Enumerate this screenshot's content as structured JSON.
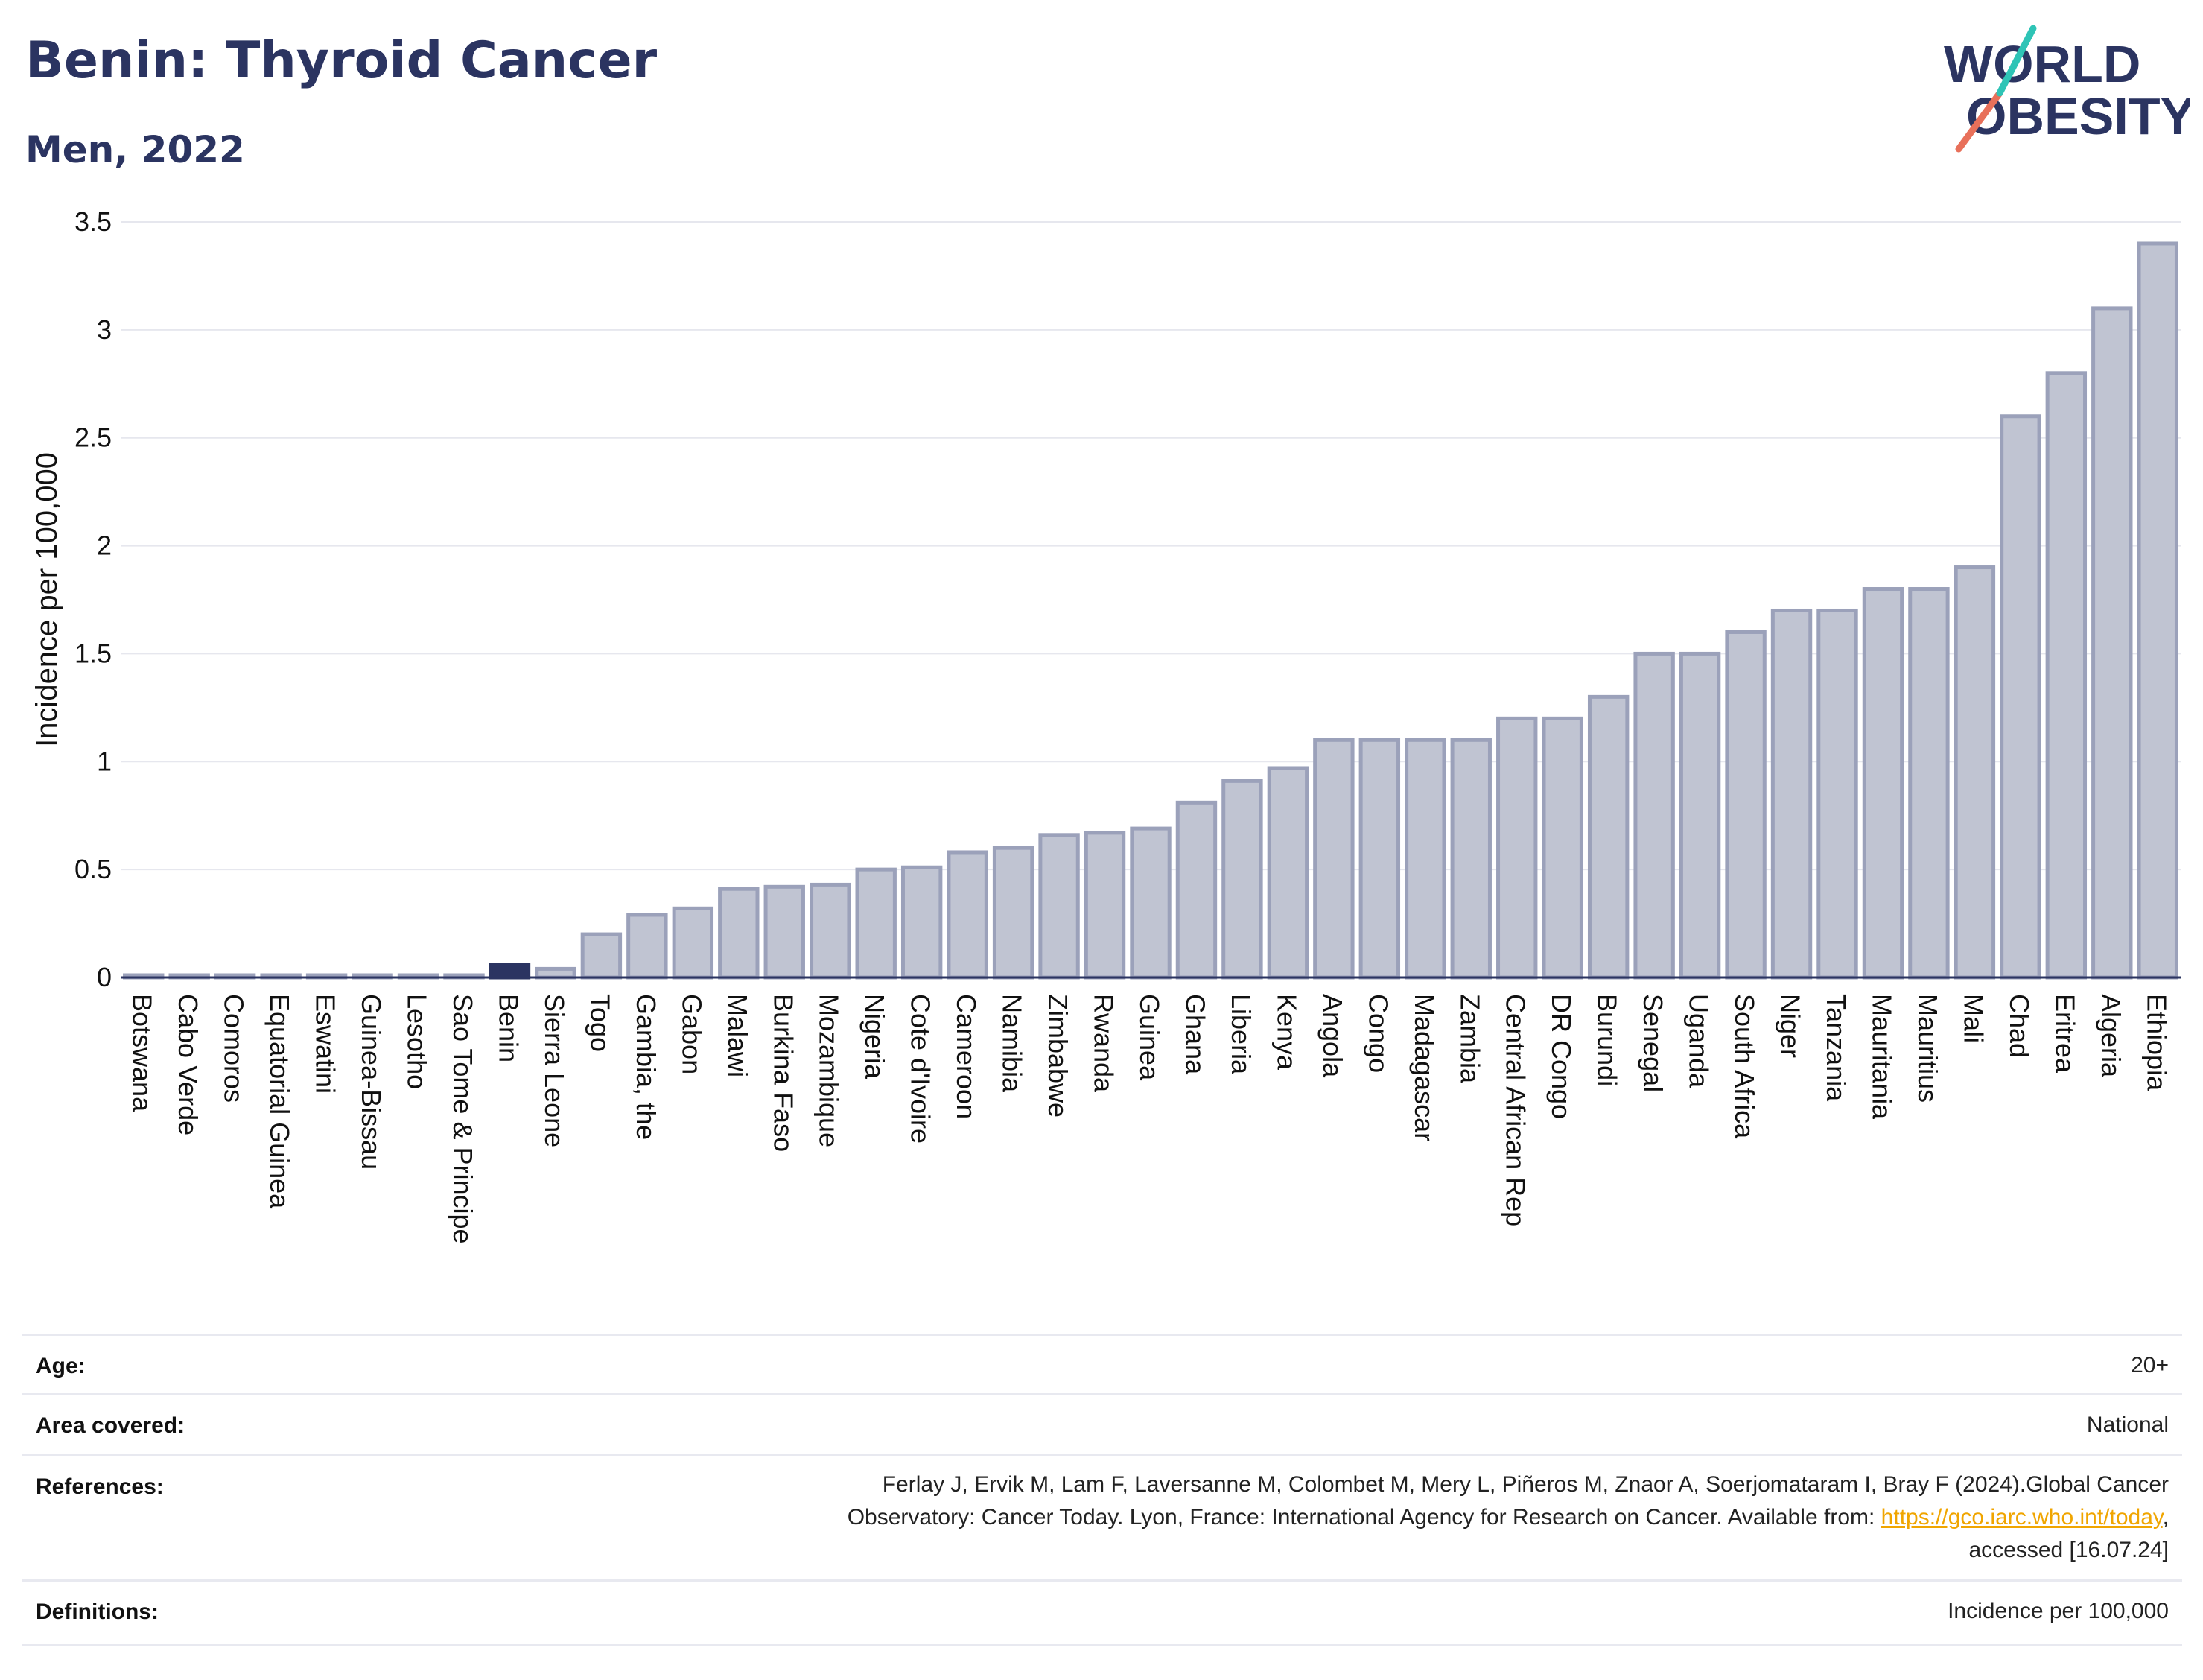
{
  "header": {
    "title": "Benin: Thyroid Cancer",
    "subtitle": "Men, 2022"
  },
  "logo": {
    "line1": "WORLD",
    "line2": "OBESITY",
    "accent_colors": [
      "#e8705a",
      "#2ec4b6"
    ]
  },
  "chart_data": {
    "type": "bar",
    "title": "Benin: Thyroid Cancer",
    "subtitle": "Men, 2022",
    "xlabel": "",
    "ylabel": "Incidence per 100,000",
    "ylim": [
      0,
      3.5
    ],
    "yticks": [
      0,
      0.5,
      1,
      1.5,
      2,
      2.5,
      3,
      3.5
    ],
    "ytick_labels": [
      "0",
      "0.5",
      "1",
      "1.5",
      "2",
      "2.5",
      "3",
      "3.5"
    ],
    "grid": true,
    "legend": "none",
    "highlight": "Benin",
    "colors": {
      "bar": "#c0c4d2",
      "bar_border": "#9ba1ba",
      "highlight": "#2b3461",
      "axis": "#2b3461"
    },
    "categories": [
      "Botswana",
      "Cabo Verde",
      "Comoros",
      "Equatorial Guinea",
      "Eswatini",
      "Guinea-Bissau",
      "Lesotho",
      "Sao Tome & Principe",
      "Benin",
      "Sierra Leone",
      "Togo",
      "Gambia, the",
      "Gabon",
      "Malawi",
      "Burkina Faso",
      "Mozambique",
      "Nigeria",
      "Cote d'Ivoire",
      "Cameroon",
      "Namibia",
      "Zimbabwe",
      "Rwanda",
      "Guinea",
      "Ghana",
      "Liberia",
      "Kenya",
      "Angola",
      "Congo",
      "Madagascar",
      "Zambia",
      "Central African Rep",
      "DR Congo",
      "Burundi",
      "Senegal",
      "Uganda",
      "South Africa",
      "Niger",
      "Tanzania",
      "Mauritania",
      "Mauritius",
      "Mali",
      "Chad",
      "Eritrea",
      "Algeria",
      "Ethiopia"
    ],
    "values": [
      0.01,
      0.01,
      0.01,
      0.01,
      0.01,
      0.01,
      0.01,
      0.01,
      0.06,
      0.04,
      0.2,
      0.29,
      0.32,
      0.41,
      0.42,
      0.43,
      0.5,
      0.51,
      0.58,
      0.6,
      0.66,
      0.67,
      0.69,
      0.81,
      0.91,
      0.97,
      1.1,
      1.1,
      1.1,
      1.1,
      1.2,
      1.2,
      1.3,
      1.5,
      1.5,
      1.6,
      1.7,
      1.7,
      1.8,
      1.8,
      1.9,
      2.6,
      2.8,
      3.1,
      3.4
    ]
  },
  "meta": {
    "age": {
      "label": "Age:",
      "value": "20+"
    },
    "area": {
      "label": "Area covered:",
      "value": "National"
    },
    "references": {
      "label": "References:",
      "line1": "Ferlay J, Ervik M, Lam F, Laversanne M, Colombet M, Mery L, Piñeros M, Znaor A, Soerjomataram I, Bray F (2024).Global Cancer",
      "line2_prefix": "Observatory: Cancer Today. Lyon, France: International Agency for Research on Cancer. Available from: ",
      "link": "https://gco.iarc.who.int/today",
      "line2_suffix": ",",
      "line3": "accessed [16.07.24]"
    },
    "definitions": {
      "label": "Definitions:",
      "value": "Incidence per 100,000"
    }
  }
}
